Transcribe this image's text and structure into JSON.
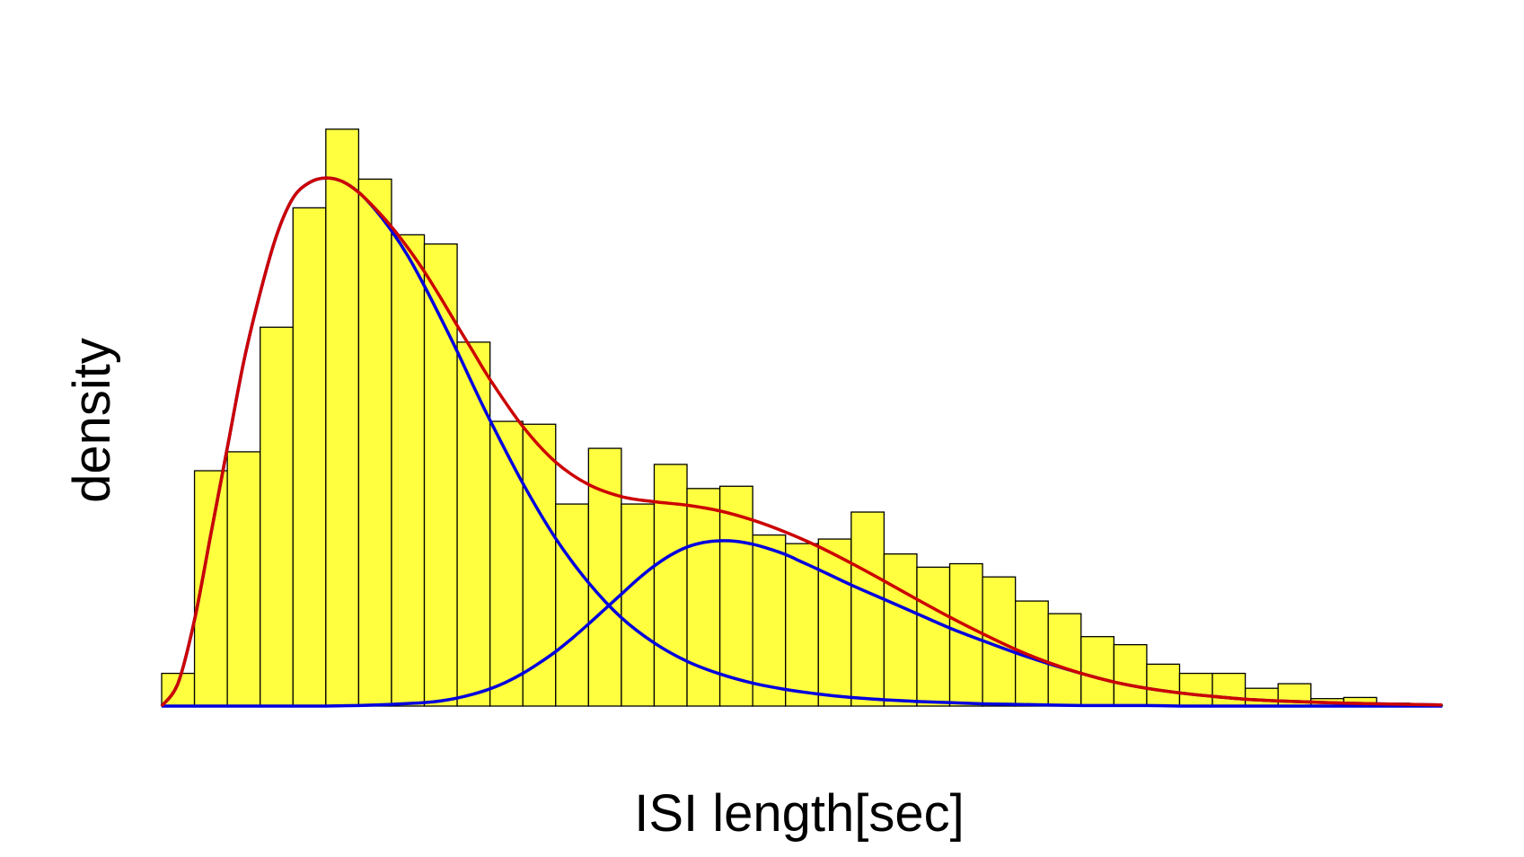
{
  "chart_data": {
    "type": "bar",
    "title": "",
    "xlabel": "ISI length[sec]",
    "ylabel": "density",
    "x_ticks_shown": false,
    "y_ticks_shown": false,
    "grid": false,
    "ylim": [
      0,
      100
    ],
    "xlim": [
      0,
      39
    ],
    "bin_count": 39,
    "values": [
      5.7,
      41,
      44.3,
      66,
      86.8,
      100.5,
      91.8,
      82.1,
      80.5,
      63.4,
      49.6,
      49.1,
      35.2,
      44.9,
      35.2,
      42.1,
      37.9,
      38.3,
      29.8,
      28.3,
      29.1,
      33.8,
      26.5,
      24.2,
      24.8,
      22.5,
      18.3,
      16.1,
      12.1,
      10.7,
      7.3,
      5.7,
      5.7,
      3.1,
      3.9,
      1.3,
      1.5,
      0.5,
      0.2
    ],
    "fill_color": "#ffff40",
    "edge_color": "#000000",
    "curves": [
      {
        "color": "#cc0000",
        "role": "mixture total",
        "x": [
          0,
          0.5,
          1,
          1.5,
          2,
          2.5,
          3,
          3.5,
          4,
          4.5,
          5,
          5.5,
          6,
          6.5,
          7,
          7.5,
          8,
          8.5,
          9,
          9.5,
          10,
          11,
          12,
          13,
          14,
          15,
          16,
          17,
          18,
          19,
          20,
          21,
          22,
          23,
          24,
          25,
          26,
          27,
          28,
          29,
          30,
          31,
          32,
          33,
          34,
          35,
          36,
          37,
          38,
          39
        ],
        "y": [
          0,
          4,
          15,
          30,
          45,
          60,
          72,
          82,
          88.5,
          91.2,
          92,
          91.4,
          89.5,
          86.7,
          83.5,
          79.8,
          75.7,
          71.1,
          66.3,
          61.6,
          56.9,
          48.7,
          42.5,
          38.6,
          36.5,
          35.6,
          35,
          34,
          32.4,
          30.3,
          27.8,
          24.9,
          21.8,
          18.6,
          15.5,
          12.6,
          9.9,
          7.6,
          5.7,
          4.2,
          3.1,
          2.3,
          1.7,
          1.2,
          0.9,
          0.7,
          0.5,
          0.4,
          0.3,
          0.2
        ]
      },
      {
        "color": "#0000dd",
        "role": "mixture component 1",
        "x": [
          0,
          0.5,
          1,
          1.5,
          2,
          2.5,
          3,
          3.5,
          4,
          4.5,
          5,
          5.5,
          6,
          6.5,
          7,
          7.5,
          8,
          8.5,
          9,
          9.5,
          10,
          11,
          12,
          13,
          14,
          15,
          16,
          17,
          18,
          19,
          20,
          21,
          22,
          23,
          24,
          25,
          26,
          27,
          28,
          29,
          30,
          31,
          32,
          33,
          34,
          35,
          36,
          37,
          38,
          39
        ],
        "y": [
          0,
          4,
          15,
          30,
          45,
          60,
          72,
          82,
          88.5,
          91.2,
          92,
          91.4,
          89.5,
          86.5,
          82.8,
          78.4,
          73.2,
          67.6,
          61.8,
          55.7,
          49.8,
          38.8,
          29.2,
          21.5,
          15.4,
          11,
          7.8,
          5.6,
          4,
          2.9,
          2.1,
          1.5,
          1.1,
          0.8,
          0.6,
          0.4,
          0.3,
          0.2,
          0.1,
          0.1,
          0.1,
          0,
          0,
          0,
          0,
          0,
          0,
          0,
          0,
          0
        ]
      },
      {
        "color": "#0000dd",
        "role": "mixture component 2",
        "x": [
          0,
          1,
          2,
          3,
          4,
          5,
          6,
          7,
          8,
          8.5,
          9,
          9.5,
          10,
          10.5,
          11,
          11.5,
          12,
          12.5,
          13,
          13.5,
          14,
          14.5,
          15,
          15.5,
          16,
          16.5,
          17,
          17.5,
          18,
          18.5,
          19,
          19.5,
          20,
          21,
          22,
          23,
          24,
          25,
          26,
          27,
          28,
          29,
          30,
          31,
          32,
          33,
          34,
          35,
          36,
          37,
          38,
          39
        ],
        "y": [
          0,
          0,
          0,
          0,
          0,
          0,
          0.1,
          0.3,
          0.6,
          0.9,
          1.4,
          2.1,
          3,
          4.2,
          5.7,
          7.5,
          9.5,
          11.8,
          14.3,
          16.9,
          19.5,
          22.1,
          24.4,
          26.3,
          27.7,
          28.5,
          28.8,
          28.7,
          28.2,
          27.4,
          26.4,
          25.1,
          23.8,
          21.1,
          18.6,
          16.1,
          13.6,
          11.4,
          9.3,
          7.4,
          5.7,
          4.2,
          3.1,
          2.3,
          1.7,
          1.2,
          0.9,
          0.7,
          0.5,
          0.4,
          0.3,
          0.2
        ]
      }
    ]
  }
}
